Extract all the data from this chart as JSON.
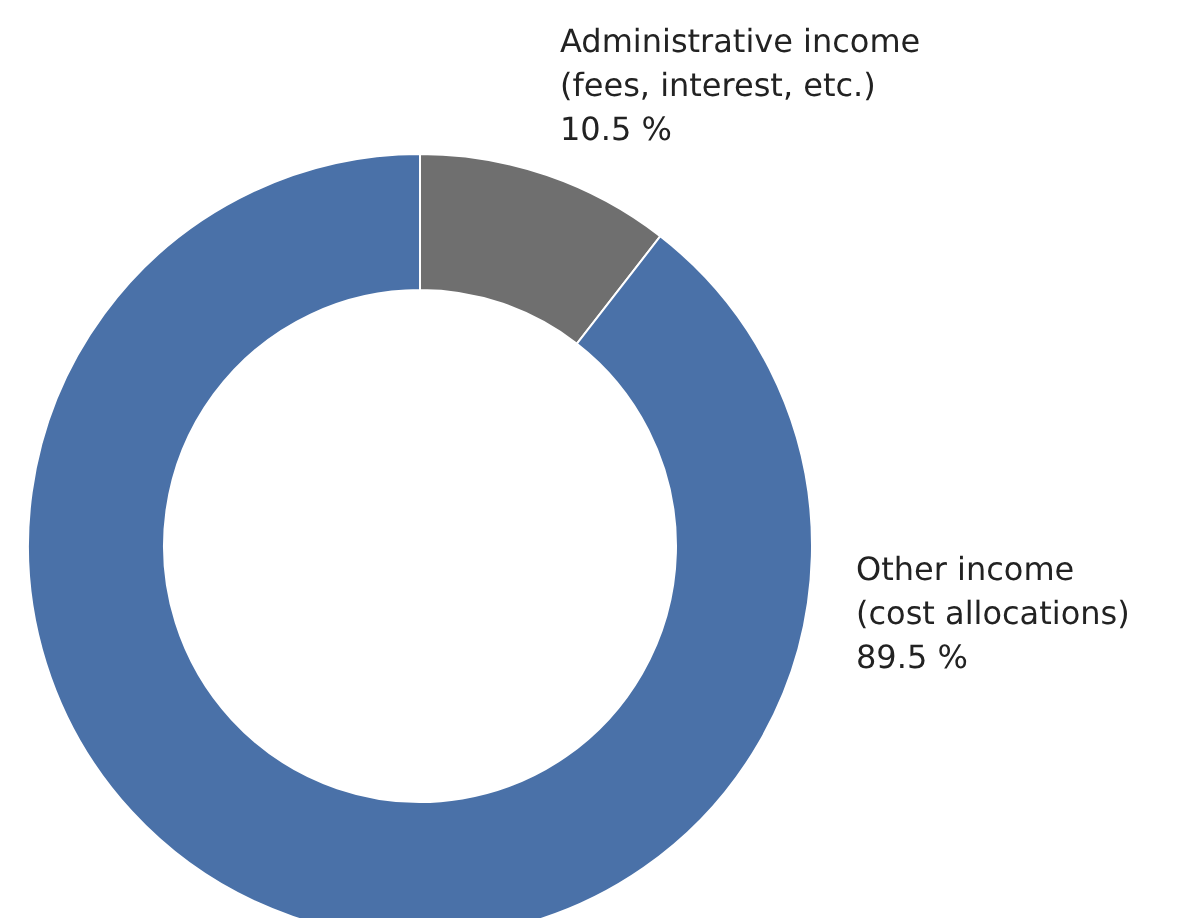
{
  "chart_data": {
    "type": "donut",
    "categories": [
      "Administrative income\n(fees, interest, etc.)",
      "Other income\n(cost allocations)"
    ],
    "values": [
      10.5,
      89.5
    ],
    "colors": [
      "#6f6f6f",
      "#4a71a8"
    ],
    "value_labels": [
      "10.5 %",
      "89.5 %"
    ]
  }
}
